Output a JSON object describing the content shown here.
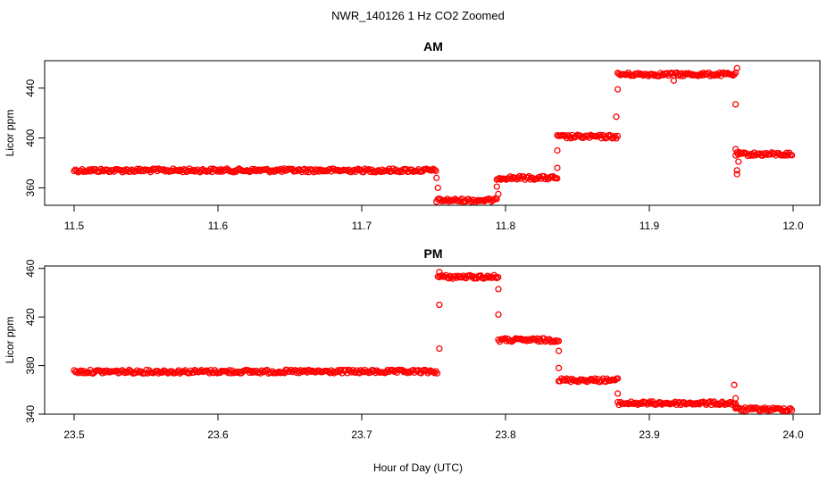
{
  "figure": {
    "title": "NWR_140126  1 Hz CO2 Zoomed",
    "shared_xlabel": "Hour of Day (UTC)"
  },
  "colors": {
    "points": "#ff0000",
    "frame": "#000000"
  },
  "chart_data": [
    {
      "type": "scatter",
      "title": "AM",
      "xlabel": "",
      "ylabel": "Licor ppm",
      "xlim": [
        11.5,
        12.0
      ],
      "ylim": [
        346,
        462
      ],
      "xticks": [
        11.5,
        11.6,
        11.7,
        11.8,
        11.9,
        12.0
      ],
      "xtick_labels": [
        "11.5",
        "11.6",
        "11.7",
        "11.8",
        "11.9",
        "12.0"
      ],
      "yticks": [
        360,
        400,
        440
      ],
      "ytick_labels": [
        "360",
        "400",
        "440"
      ],
      "grid": false,
      "marker": "open circle",
      "segments": [
        {
          "x_start": 11.5,
          "x_end": 11.752,
          "y": 374
        },
        {
          "x_start": 11.752,
          "x_end": 11.794,
          "y": 350
        },
        {
          "x_start": 11.794,
          "x_end": 11.836,
          "y": 368
        },
        {
          "x_start": 11.836,
          "x_end": 11.878,
          "y": 401
        },
        {
          "x_start": 11.878,
          "x_end": 11.96,
          "y": 451
        },
        {
          "x_start": 11.96,
          "x_end": 12.0,
          "y": 387
        }
      ],
      "transition_points": [
        {
          "x": 11.752,
          "y": 368
        },
        {
          "x": 11.753,
          "y": 360
        },
        {
          "x": 11.794,
          "y": 361
        },
        {
          "x": 11.795,
          "y": 355
        },
        {
          "x": 11.836,
          "y": 376
        },
        {
          "x": 11.836,
          "y": 390
        },
        {
          "x": 11.877,
          "y": 417
        },
        {
          "x": 11.878,
          "y": 439
        },
        {
          "x": 11.917,
          "y": 446
        },
        {
          "x": 11.96,
          "y": 427
        },
        {
          "x": 11.96,
          "y": 391
        },
        {
          "x": 11.961,
          "y": 374
        },
        {
          "x": 11.961,
          "y": 371
        },
        {
          "x": 11.962,
          "y": 381
        },
        {
          "x": 11.961,
          "y": 456
        }
      ]
    },
    {
      "type": "scatter",
      "title": "PM",
      "xlabel": "",
      "ylabel": "Licor ppm",
      "xlim": [
        23.5,
        24.0
      ],
      "ylim": [
        340,
        462
      ],
      "xticks": [
        23.5,
        23.6,
        23.7,
        23.8,
        23.9,
        24.0
      ],
      "xtick_labels": [
        "23.5",
        "23.6",
        "23.7",
        "23.8",
        "23.9",
        "24.0"
      ],
      "yticks": [
        340,
        380,
        420,
        460
      ],
      "ytick_labels": [
        "340",
        "380",
        "420",
        "460"
      ],
      "grid": false,
      "marker": "open circle",
      "segments": [
        {
          "x_start": 23.5,
          "x_end": 23.753,
          "y": 375
        },
        {
          "x_start": 23.753,
          "x_end": 23.795,
          "y": 453
        },
        {
          "x_start": 23.795,
          "x_end": 23.837,
          "y": 401
        },
        {
          "x_start": 23.837,
          "x_end": 23.878,
          "y": 368
        },
        {
          "x_start": 23.878,
          "x_end": 23.96,
          "y": 349
        },
        {
          "x_start": 23.96,
          "x_end": 24.0,
          "y": 344
        }
      ],
      "transition_points": [
        {
          "x": 23.754,
          "y": 394
        },
        {
          "x": 23.754,
          "y": 430
        },
        {
          "x": 23.754,
          "y": 457
        },
        {
          "x": 23.795,
          "y": 443
        },
        {
          "x": 23.795,
          "y": 422
        },
        {
          "x": 23.837,
          "y": 392
        },
        {
          "x": 23.837,
          "y": 378
        },
        {
          "x": 23.878,
          "y": 357
        },
        {
          "x": 23.959,
          "y": 364
        },
        {
          "x": 23.96,
          "y": 353
        },
        {
          "x": 23.96,
          "y": 346
        }
      ]
    }
  ]
}
